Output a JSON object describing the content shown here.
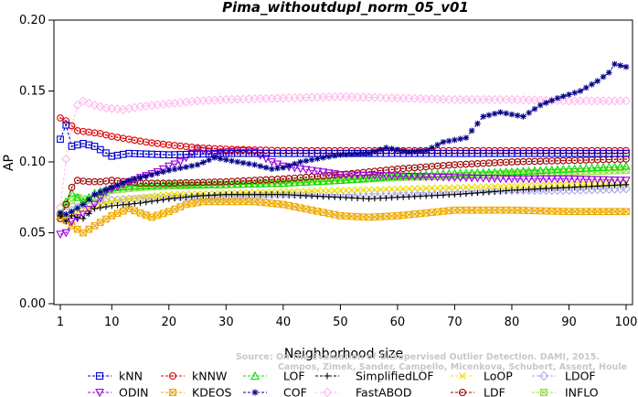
{
  "chart_data": {
    "type": "line",
    "title": "Pima_withoutdupl_norm_05_v01",
    "xlabel": "Neighborhood size",
    "ylabel": "AP",
    "xlim": [
      1,
      100
    ],
    "ylim": [
      0.0,
      0.2
    ],
    "xticks": [
      1,
      10,
      20,
      30,
      40,
      50,
      60,
      70,
      80,
      90,
      100
    ],
    "yticks": [
      0.0,
      0.05,
      0.1,
      0.15,
      0.2
    ],
    "ytick_labels": [
      "0.00",
      "0.05",
      "0.10",
      "0.15",
      "0.20"
    ],
    "grid": false,
    "legend_position": "bottom",
    "watermark": [
      "Source: On the Evaluation of Unsupervised Outlier Detection. DAMI, 2015.",
      "Campos, Zimek, Sander, Campello, Micenkova, Schubert, Assent, Houle"
    ],
    "series": [
      {
        "name": "kNN",
        "color": "#0000cc",
        "marker": "square-dot",
        "points": [
          [
            1,
            0.116
          ],
          [
            2,
            0.126
          ],
          [
            3,
            0.111
          ],
          [
            5,
            0.113
          ],
          [
            7,
            0.111
          ],
          [
            10,
            0.104
          ],
          [
            13,
            0.106
          ],
          [
            20,
            0.105
          ],
          [
            30,
            0.106
          ],
          [
            40,
            0.106
          ],
          [
            50,
            0.106
          ],
          [
            60,
            0.106
          ],
          [
            70,
            0.106
          ],
          [
            80,
            0.106
          ],
          [
            90,
            0.106
          ],
          [
            100,
            0.106
          ]
        ]
      },
      {
        "name": "kNNW",
        "color": "#dd0000",
        "marker": "circle-dot",
        "points": [
          [
            1,
            0.131
          ],
          [
            2,
            0.129
          ],
          [
            4,
            0.122
          ],
          [
            6,
            0.121
          ],
          [
            8,
            0.12
          ],
          [
            10,
            0.118
          ],
          [
            13,
            0.116
          ],
          [
            16,
            0.114
          ],
          [
            20,
            0.112
          ],
          [
            25,
            0.11
          ],
          [
            30,
            0.109
          ],
          [
            40,
            0.108
          ],
          [
            50,
            0.108
          ],
          [
            60,
            0.108
          ],
          [
            70,
            0.108
          ],
          [
            80,
            0.108
          ],
          [
            90,
            0.108
          ],
          [
            100,
            0.108
          ]
        ]
      },
      {
        "name": "LOF",
        "color": "#00dd00",
        "marker": "triangle-up",
        "points": [
          [
            1,
            0.062
          ],
          [
            2,
            0.072
          ],
          [
            3,
            0.078
          ],
          [
            5,
            0.072
          ],
          [
            7,
            0.078
          ],
          [
            10,
            0.082
          ],
          [
            15,
            0.083
          ],
          [
            20,
            0.084
          ],
          [
            30,
            0.084
          ],
          [
            40,
            0.085
          ],
          [
            50,
            0.087
          ],
          [
            60,
            0.09
          ],
          [
            70,
            0.092
          ],
          [
            80,
            0.093
          ],
          [
            90,
            0.095
          ],
          [
            100,
            0.097
          ]
        ]
      },
      {
        "name": "SimplifiedLOF",
        "color": "#000000",
        "marker": "plus",
        "points": [
          [
            1,
            0.062
          ],
          [
            2,
            0.058
          ],
          [
            3,
            0.062
          ],
          [
            5,
            0.06
          ],
          [
            7,
            0.067
          ],
          [
            10,
            0.069
          ],
          [
            15,
            0.071
          ],
          [
            20,
            0.074
          ],
          [
            25,
            0.076
          ],
          [
            30,
            0.077
          ],
          [
            40,
            0.077
          ],
          [
            50,
            0.075
          ],
          [
            55,
            0.074
          ],
          [
            60,
            0.075
          ],
          [
            70,
            0.077
          ],
          [
            80,
            0.08
          ],
          [
            90,
            0.082
          ],
          [
            100,
            0.084
          ]
        ]
      },
      {
        "name": "LoOP",
        "color": "#eedd00",
        "marker": "cross",
        "points": [
          [
            1,
            0.06
          ],
          [
            3,
            0.063
          ],
          [
            5,
            0.066
          ],
          [
            8,
            0.07
          ],
          [
            10,
            0.072
          ],
          [
            15,
            0.075
          ],
          [
            20,
            0.077
          ],
          [
            30,
            0.078
          ],
          [
            40,
            0.079
          ],
          [
            50,
            0.08
          ],
          [
            60,
            0.081
          ],
          [
            70,
            0.082
          ],
          [
            80,
            0.083
          ],
          [
            90,
            0.084
          ],
          [
            100,
            0.085
          ]
        ]
      },
      {
        "name": "LDOF",
        "color": "#aaaaee",
        "marker": "diamond",
        "points": [
          [
            1,
            0.063
          ],
          [
            3,
            0.066
          ],
          [
            5,
            0.07
          ],
          [
            10,
            0.073
          ],
          [
            20,
            0.075
          ],
          [
            30,
            0.076
          ],
          [
            40,
            0.077
          ],
          [
            50,
            0.077
          ],
          [
            60,
            0.078
          ],
          [
            70,
            0.079
          ],
          [
            80,
            0.08
          ],
          [
            90,
            0.08
          ],
          [
            100,
            0.081
          ]
        ]
      },
      {
        "name": "ODIN",
        "color": "#9900dd",
        "marker": "triangle-down",
        "points": [
          [
            1,
            0.049
          ],
          [
            2,
            0.05
          ],
          [
            3,
            0.058
          ],
          [
            5,
            0.063
          ],
          [
            7,
            0.07
          ],
          [
            9,
            0.079
          ],
          [
            12,
            0.084
          ],
          [
            15,
            0.089
          ],
          [
            18,
            0.093
          ],
          [
            20,
            0.097
          ],
          [
            22,
            0.1
          ],
          [
            25,
            0.109
          ],
          [
            28,
            0.106
          ],
          [
            30,
            0.107
          ],
          [
            33,
            0.108
          ],
          [
            35,
            0.107
          ],
          [
            38,
            0.1
          ],
          [
            40,
            0.097
          ],
          [
            45,
            0.094
          ],
          [
            50,
            0.091
          ],
          [
            60,
            0.09
          ],
          [
            70,
            0.089
          ],
          [
            80,
            0.088
          ],
          [
            90,
            0.088
          ],
          [
            100,
            0.087
          ]
        ]
      },
      {
        "name": "KDEOS",
        "color": "#eeaa00",
        "marker": "square-x",
        "points": [
          [
            1,
            0.062
          ],
          [
            3,
            0.055
          ],
          [
            5,
            0.05
          ],
          [
            7,
            0.055
          ],
          [
            10,
            0.062
          ],
          [
            13,
            0.067
          ],
          [
            15,
            0.064
          ],
          [
            17,
            0.061
          ],
          [
            20,
            0.065
          ],
          [
            23,
            0.07
          ],
          [
            26,
            0.072
          ],
          [
            30,
            0.072
          ],
          [
            35,
            0.072
          ],
          [
            40,
            0.07
          ],
          [
            45,
            0.066
          ],
          [
            50,
            0.062
          ],
          [
            55,
            0.061
          ],
          [
            60,
            0.062
          ],
          [
            65,
            0.064
          ],
          [
            70,
            0.066
          ],
          [
            80,
            0.066
          ],
          [
            90,
            0.065
          ],
          [
            100,
            0.065
          ]
        ]
      },
      {
        "name": "COF",
        "color": "#000088",
        "marker": "asterisk",
        "points": [
          [
            1,
            0.064
          ],
          [
            2,
            0.063
          ],
          [
            3,
            0.065
          ],
          [
            5,
            0.07
          ],
          [
            7,
            0.077
          ],
          [
            10,
            0.082
          ],
          [
            13,
            0.087
          ],
          [
            16,
            0.09
          ],
          [
            20,
            0.094
          ],
          [
            25,
            0.098
          ],
          [
            28,
            0.103
          ],
          [
            32,
            0.1
          ],
          [
            35,
            0.098
          ],
          [
            38,
            0.095
          ],
          [
            40,
            0.096
          ],
          [
            43,
            0.1
          ],
          [
            47,
            0.103
          ],
          [
            50,
            0.105
          ],
          [
            55,
            0.106
          ],
          [
            58,
            0.11
          ],
          [
            62,
            0.107
          ],
          [
            65,
            0.108
          ],
          [
            68,
            0.114
          ],
          [
            72,
            0.117
          ],
          [
            75,
            0.132
          ],
          [
            78,
            0.135
          ],
          [
            82,
            0.132
          ],
          [
            85,
            0.14
          ],
          [
            88,
            0.145
          ],
          [
            92,
            0.15
          ],
          [
            95,
            0.157
          ],
          [
            97,
            0.163
          ],
          [
            98,
            0.169
          ],
          [
            100,
            0.167
          ]
        ]
      },
      {
        "name": "FastABOD",
        "color": "#ffbbee",
        "marker": "diamond",
        "points": [
          [
            1,
            0.068
          ],
          [
            2,
            0.102
          ],
          [
            3,
            0.125
          ],
          [
            4,
            0.14
          ],
          [
            5,
            0.143
          ],
          [
            7,
            0.14
          ],
          [
            9,
            0.138
          ],
          [
            12,
            0.137
          ],
          [
            15,
            0.139
          ],
          [
            20,
            0.141
          ],
          [
            25,
            0.143
          ],
          [
            30,
            0.144
          ],
          [
            40,
            0.145
          ],
          [
            50,
            0.146
          ],
          [
            60,
            0.145
          ],
          [
            70,
            0.144
          ],
          [
            80,
            0.144
          ],
          [
            90,
            0.143
          ],
          [
            100,
            0.143
          ]
        ]
      },
      {
        "name": "LDF",
        "color": "#990000",
        "marker": "circle-dot",
        "points": [
          [
            1,
            0.06
          ],
          [
            2,
            0.07
          ],
          [
            3,
            0.082
          ],
          [
            4,
            0.087
          ],
          [
            6,
            0.086
          ],
          [
            8,
            0.086
          ],
          [
            10,
            0.087
          ],
          [
            15,
            0.085
          ],
          [
            20,
            0.085
          ],
          [
            30,
            0.086
          ],
          [
            40,
            0.088
          ],
          [
            50,
            0.091
          ],
          [
            60,
            0.095
          ],
          [
            70,
            0.098
          ],
          [
            80,
            0.1
          ],
          [
            90,
            0.101
          ],
          [
            100,
            0.102
          ]
        ]
      },
      {
        "name": "INFLO",
        "color": "#99dd44",
        "marker": "square-x",
        "points": [
          [
            1,
            0.063
          ],
          [
            2,
            0.07
          ],
          [
            4,
            0.075
          ],
          [
            6,
            0.073
          ],
          [
            8,
            0.076
          ],
          [
            10,
            0.08
          ],
          [
            15,
            0.082
          ],
          [
            20,
            0.083
          ],
          [
            30,
            0.084
          ],
          [
            40,
            0.085
          ],
          [
            50,
            0.087
          ],
          [
            60,
            0.089
          ],
          [
            70,
            0.09
          ],
          [
            80,
            0.092
          ],
          [
            90,
            0.093
          ],
          [
            100,
            0.094
          ]
        ]
      }
    ]
  }
}
